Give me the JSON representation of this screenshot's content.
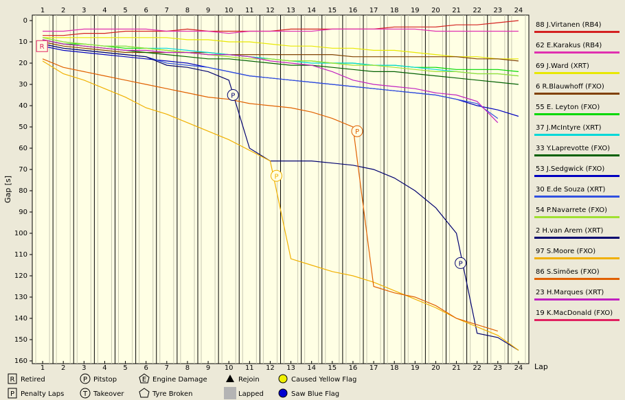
{
  "chart_data": {
    "type": "line",
    "xlabel": "Lap",
    "ylabel": "Gap [s]",
    "x": [
      1,
      2,
      3,
      4,
      5,
      6,
      7,
      8,
      9,
      10,
      11,
      12,
      13,
      14,
      15,
      16,
      17,
      18,
      19,
      20,
      21,
      22,
      23,
      24
    ],
    "xlim": [
      0.5,
      24.5
    ],
    "xticks": [
      1,
      2,
      3,
      4,
      5,
      6,
      7,
      8,
      9,
      10,
      11,
      12,
      13,
      14,
      15,
      16,
      17,
      18,
      19,
      20,
      21,
      22,
      23,
      24
    ],
    "ylim": [
      0,
      160
    ],
    "yticks": [
      0,
      10,
      20,
      30,
      40,
      50,
      60,
      70,
      80,
      90,
      100,
      110,
      120,
      130,
      140,
      150,
      160
    ],
    "series": [
      {
        "name": "88 J.Virtanen (RB4)",
        "color": "#d42020",
        "values": [
          7,
          7,
          6,
          6,
          5,
          5,
          5,
          4,
          5,
          5,
          5,
          5,
          4,
          4,
          4,
          4,
          4,
          3,
          3,
          3,
          2,
          2,
          1,
          0
        ]
      },
      {
        "name": "62 E.Karakus (RB4)",
        "color": "#e030b0",
        "values": [
          5,
          5,
          4,
          4,
          4,
          4,
          5,
          5,
          5,
          6,
          5,
          5,
          5,
          5,
          4,
          4,
          4,
          4,
          4,
          5,
          5,
          5,
          5,
          5
        ]
      },
      {
        "name": "69 J.Ward (XRT)",
        "color": "#e8e800",
        "values": [
          8,
          8,
          8,
          8,
          8,
          8,
          8,
          9,
          9,
          10,
          10,
          11,
          12,
          12,
          13,
          13,
          14,
          14,
          15,
          16,
          17,
          17,
          18,
          18
        ]
      },
      {
        "name": "6 R.Blauwhoff (FXO)",
        "color": "#804000",
        "values": [
          10,
          12,
          13,
          14,
          15,
          15,
          15,
          15,
          15,
          16,
          16,
          16,
          16,
          16,
          16,
          17,
          17,
          17,
          17,
          17,
          17,
          18,
          18,
          19
        ]
      },
      {
        "name": "55 E. Leyton (FXO)",
        "color": "#00d800",
        "values": [
          9,
          11,
          11,
          12,
          13,
          13,
          14,
          15,
          16,
          16,
          17,
          18,
          19,
          19,
          20,
          20,
          21,
          21,
          22,
          22,
          23,
          23,
          23,
          24
        ]
      },
      {
        "name": "37 J.McIntyre (XRT)",
        "color": "#00d8d8",
        "values": [
          8,
          10,
          11,
          12,
          12,
          13,
          13,
          14,
          15,
          16,
          17,
          18,
          19,
          20,
          20,
          20,
          21,
          21,
          22,
          23,
          24,
          25,
          25,
          26
        ]
      },
      {
        "name": "33 Y.Laprevotte (FXO)",
        "color": "#006000",
        "values": [
          9,
          11,
          12,
          13,
          14,
          15,
          16,
          17,
          18,
          18,
          19,
          20,
          21,
          21,
          22,
          23,
          24,
          24,
          25,
          26,
          27,
          28,
          29,
          30
        ]
      },
      {
        "name": "53 J.Sedgwick (FXO)",
        "color": "#0000c0",
        "values": [
          12,
          14,
          15,
          16,
          17,
          18,
          19,
          20,
          22,
          24,
          26,
          27,
          28,
          29,
          30,
          31,
          32,
          33,
          34,
          35,
          37,
          40,
          42,
          45
        ]
      },
      {
        "name": "30 E.de Souza (XRT)",
        "color": "#3050e0",
        "values": [
          11,
          13,
          14,
          15,
          16,
          17,
          20,
          21,
          22,
          24,
          26,
          27,
          28,
          29,
          30,
          31,
          32,
          33,
          34,
          35,
          37,
          39,
          46,
          null
        ]
      },
      {
        "name": "54 P.Navarrete (FXO)",
        "color": "#a0e030",
        "values": [
          8,
          10,
          11,
          12,
          12,
          13,
          14,
          15,
          16,
          17,
          18,
          18,
          19,
          19,
          20,
          21,
          21,
          22,
          23,
          24,
          24,
          25,
          25,
          26
        ]
      },
      {
        "name": "2 H.van Arem (XRT)",
        "color": "#000070",
        "values": [
          11,
          13,
          14,
          15,
          16,
          17,
          21,
          22,
          24,
          28,
          60,
          66,
          66,
          66,
          67,
          68,
          70,
          74,
          80,
          88,
          100,
          147,
          149,
          155
        ]
      },
      {
        "name": "97 S.Moore (FXO)",
        "color": "#f0b000",
        "values": [
          19,
          25,
          28,
          32,
          36,
          41,
          44,
          48,
          52,
          56,
          61,
          66,
          112,
          115,
          118,
          120,
          123,
          127,
          131,
          135,
          140,
          144,
          148,
          155
        ]
      },
      {
        "name": "86 S.Simões (FXO)",
        "color": "#e06000",
        "values": [
          18,
          22,
          24,
          26,
          28,
          30,
          32,
          34,
          36,
          37,
          39,
          40,
          41,
          43,
          46,
          50,
          125,
          128,
          130,
          134,
          140,
          143,
          146,
          null
        ]
      },
      {
        "name": "23 H.Marques (XRT)",
        "color": "#c020c0",
        "values": [
          9,
          11,
          12,
          13,
          14,
          14,
          15,
          15,
          16,
          16,
          17,
          19,
          20,
          21,
          24,
          28,
          30,
          31,
          32,
          34,
          35,
          38,
          48,
          null
        ]
      },
      {
        "name": "19 K.MacDonald (FXO)",
        "color": "#e02060",
        "values": [
          12,
          null,
          null,
          null,
          null,
          null,
          null,
          null,
          null,
          null,
          null,
          null,
          null,
          null,
          null,
          null,
          null,
          null,
          null,
          null,
          null,
          null,
          null,
          null
        ]
      }
    ],
    "events": [
      {
        "series": 10,
        "x": 10.2,
        "y": 35,
        "label": "P",
        "shape": "circle"
      },
      {
        "series": 11,
        "x": 12.3,
        "y": 73,
        "label": "P",
        "shape": "circle"
      },
      {
        "series": 12,
        "x": 16.2,
        "y": 52,
        "label": "P",
        "shape": "circle"
      },
      {
        "series": 10,
        "x": 21.2,
        "y": 114,
        "label": "P",
        "shape": "circle"
      },
      {
        "series": 14,
        "x": 0.97,
        "y": 12,
        "label": "R",
        "shape": "box"
      }
    ],
    "key": [
      {
        "symbol": "R",
        "label": "Retired"
      },
      {
        "symbol": "P",
        "label": "Penalty Laps"
      },
      {
        "symbol": "P",
        "label": "Pitstop"
      },
      {
        "symbol": "T",
        "label": "Takeover"
      },
      {
        "symbol": "E",
        "label": "Engine Damage"
      },
      {
        "label": "Tyre Broken"
      },
      {
        "label": "Rejoin"
      },
      {
        "label": "Lapped"
      },
      {
        "label": "Caused Yellow Flag"
      },
      {
        "label": "Saw Blue Flag"
      }
    ]
  }
}
